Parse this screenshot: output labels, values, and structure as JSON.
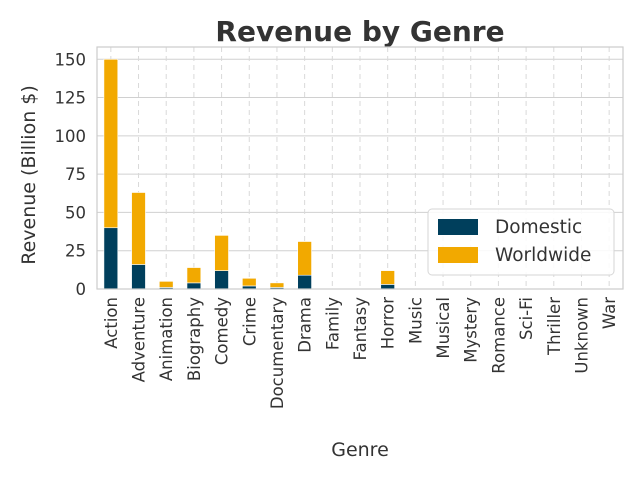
{
  "chart_data": {
    "type": "bar",
    "stacked": true,
    "title": "Revenue by Genre",
    "xlabel": "Genre",
    "ylabel": "Revenue (Billion $)",
    "ylim": [
      0,
      158
    ],
    "yticks": [
      0,
      25,
      50,
      75,
      100,
      125,
      150
    ],
    "grid": true,
    "legend_position": "lower-right",
    "categories": [
      "Action",
      "Adventure",
      "Animation",
      "Biography",
      "Comedy",
      "Crime",
      "Documentary",
      "Drama",
      "Family",
      "Fantasy",
      "Horror",
      "Music",
      "Musical",
      "Mystery",
      "Romance",
      "Sci-Fi",
      "Thriller",
      "Unknown",
      "War"
    ],
    "series": [
      {
        "name": "Domestic",
        "color": "#003f5c",
        "values": [
          40,
          16,
          1,
          4,
          12,
          2,
          1,
          9,
          0,
          0,
          3,
          0,
          0,
          0,
          0,
          0,
          0,
          0,
          0
        ]
      },
      {
        "name": "Worldwide",
        "color": "#f2a900",
        "values": [
          110,
          47,
          4,
          10,
          23,
          5,
          3,
          22,
          0,
          0,
          9,
          0,
          0,
          0,
          0,
          0,
          0,
          0,
          0
        ]
      }
    ]
  }
}
